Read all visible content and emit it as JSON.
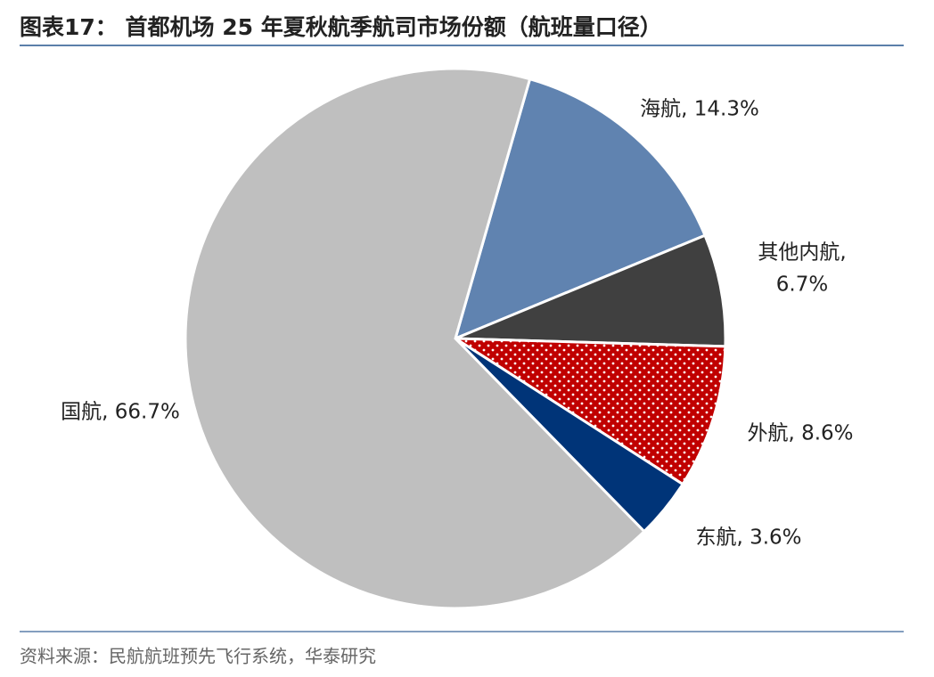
{
  "chart_data": {
    "type": "pie",
    "title": "图表17： 首都机场 25 年夏秋航季航司市场份额（航班量口径）",
    "source": "资料来源：民航航班预先飞行系统，华泰研究",
    "values": [
      14.3,
      6.7,
      8.6,
      3.6,
      66.7
    ],
    "value_labels": [
      [
        "海航, 14.3%"
      ],
      [
        "其他内航,",
        "6.7%"
      ],
      [
        "外航, 8.6%"
      ],
      [
        "东航, 3.6%"
      ],
      [
        "国航, 66.7%"
      ]
    ],
    "colors": [
      "#6083b0",
      "#404040",
      "#c00000",
      "#003478",
      "#bfbfbf"
    ],
    "hatch": [
      null,
      null,
      "dots",
      null,
      null
    ]
  }
}
